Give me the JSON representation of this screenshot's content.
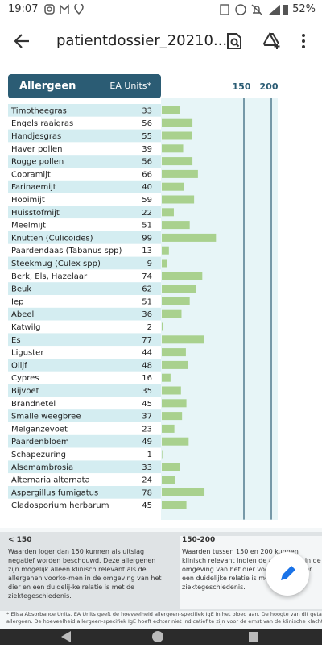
{
  "status_bar": {
    "time": "19:07",
    "battery": "52%"
  },
  "toolbar": {
    "title": "patientdossier_20210..."
  },
  "table": {
    "header": {
      "name": "Allergeen",
      "unit": "EA Units*"
    },
    "scale": [
      150,
      200
    ],
    "rows": [
      [
        "Timotheegras",
        33
      ],
      [
        "Engels raaigras",
        56
      ],
      [
        "Handjesgras",
        55
      ],
      [
        "Haver pollen",
        39
      ],
      [
        "Rogge pollen",
        56
      ],
      [
        "Copramijt",
        66
      ],
      [
        "Farinaemijt",
        40
      ],
      [
        "Hooimijt",
        59
      ],
      [
        "Huisstofmijt",
        22
      ],
      [
        "Meelmijt",
        51
      ],
      [
        "Knutten (Culicoides)",
        99
      ],
      [
        "Paardendaas (Tabanus spp)",
        13
      ],
      [
        "Steekmug (Culex spp)",
        9
      ],
      [
        "Berk, Els, Hazelaar",
        74
      ],
      [
        "Beuk",
        62
      ],
      [
        "Iep",
        51
      ],
      [
        "Abeel",
        36
      ],
      [
        "Katwilg",
        2
      ],
      [
        "Es",
        77
      ],
      [
        "Liguster",
        44
      ],
      [
        "Olijf",
        48
      ],
      [
        "Cypres",
        16
      ],
      [
        "Bijvoet",
        35
      ],
      [
        "Brandnetel",
        45
      ],
      [
        "Smalle weegbree",
        37
      ],
      [
        "Melganzevoet",
        23
      ],
      [
        "Paardenbloem",
        49
      ],
      [
        "Schapezuring",
        1
      ],
      [
        "Alsemambrosia",
        33
      ],
      [
        "Alternaria alternata",
        24
      ],
      [
        "Aspergillus fumigatus",
        78
      ],
      [
        "Cladosporium herbarum",
        45
      ]
    ]
  },
  "legend": [
    {
      "title": "< 150",
      "text": "Waarden loger dan 150 kunnen als uitslag negatief worden beschouwd. Deze allergenen zijn mogelijk alleen klinisch relevant als de allergenen voorko-men in de omgeving van het dier en een duidelij-ke relatie is met de ziektegeschiedenis."
    },
    {
      "title": "150-200",
      "text": "Waarden tussen 150 en 200 kunnen klinisch relevant indien de allergenen in de omgeving van het dier voorkomen en er een duidelijke relatie is met de ziektegeschiedenis."
    }
  ],
  "footnote": [
    "* Elisa Absorbance Units. EA Units geeft de hoeveelheid allergeen-specifiek IgE in het bloed aan. De hoogte van dit getal",
    "allergeen. De hoeveelheid allergeen-specifiek IgE hoeft echter niet indicatief te zijn voor de ernst van de klinische klacht"
  ]
}
